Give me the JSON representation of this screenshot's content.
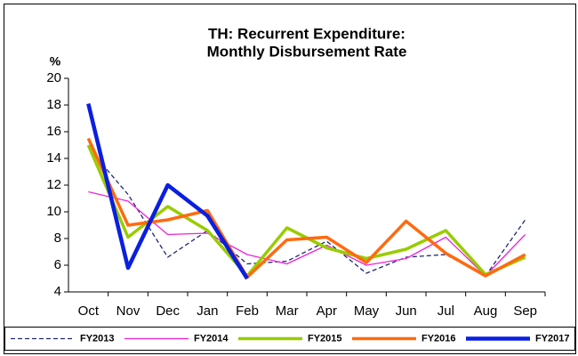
{
  "chart_data": {
    "type": "line",
    "title": [
      "TH: Recurrent Expenditure:",
      "Monthly Disbursement Rate"
    ],
    "y_label": "%",
    "categories": [
      "Oct",
      "Nov",
      "Dec",
      "Jan",
      "Feb",
      "Mar",
      "Apr",
      "May",
      "Jun",
      "Jul",
      "Aug",
      "Sep"
    ],
    "ylim": [
      4,
      20
    ],
    "yticks": [
      4,
      6,
      8,
      10,
      12,
      14,
      16,
      18,
      20
    ],
    "legend": "bottom",
    "series": [
      {
        "name": "FY2013",
        "color": "#1f2a6e",
        "width": 1.3,
        "dashed": true,
        "values": [
          14.8,
          11.3,
          6.6,
          8.6,
          6.1,
          6.3,
          7.8,
          5.4,
          6.6,
          6.8,
          5.2,
          9.4
        ]
      },
      {
        "name": "FY2014",
        "color": "#ee22dd",
        "width": 1.3,
        "dashed": false,
        "values": [
          11.5,
          10.8,
          8.3,
          8.4,
          6.8,
          6.1,
          7.5,
          6.0,
          6.5,
          8.1,
          5.2,
          8.3
        ]
      },
      {
        "name": "FY2015",
        "color": "#99cc00",
        "width": 3.5,
        "dashed": false,
        "values": [
          15.0,
          8.1,
          10.4,
          8.6,
          5.2,
          8.8,
          7.3,
          6.5,
          7.2,
          8.6,
          5.3,
          6.6
        ]
      },
      {
        "name": "FY2016",
        "color": "#ff6a10",
        "width": 3.5,
        "dashed": false,
        "values": [
          15.5,
          9.0,
          9.4,
          10.1,
          5.1,
          7.9,
          8.1,
          6.2,
          9.3,
          6.9,
          5.2,
          6.8
        ]
      },
      {
        "name": "FY2017",
        "color": "#0a1fe0",
        "width": 4.5,
        "dashed": false,
        "values": [
          18.1,
          5.8,
          12.0,
          9.7,
          5.0,
          null,
          null,
          null,
          null,
          null,
          null,
          null
        ]
      }
    ]
  }
}
